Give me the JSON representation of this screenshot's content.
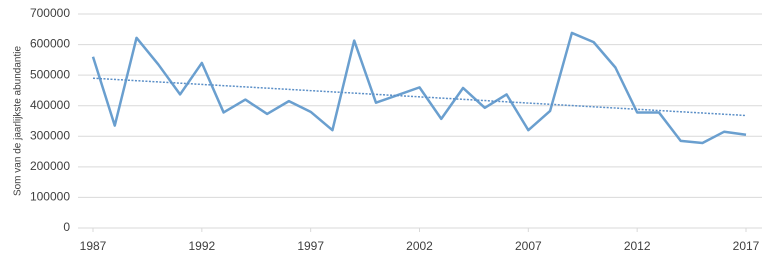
{
  "chart_data": {
    "type": "line",
    "y_label": "Som van de jaarlijkste abundantie",
    "x": [
      1987,
      1988,
      1989,
      1990,
      1991,
      1992,
      1993,
      1994,
      1995,
      1996,
      1997,
      1998,
      1999,
      2000,
      2001,
      2002,
      2003,
      2004,
      2005,
      2006,
      2007,
      2008,
      2009,
      2010,
      2011,
      2012,
      2013,
      2014,
      2015,
      2016,
      2017
    ],
    "series": [
      {
        "color": "#6a9fcf",
        "values": [
          560000,
          335000,
          622000,
          535000,
          437000,
          540000,
          378000,
          420000,
          373000,
          415000,
          380000,
          320000,
          613000,
          410000,
          435000,
          460000,
          357000,
          458000,
          393000,
          437000,
          320000,
          383000,
          638000,
          608000,
          525000,
          378000,
          378000,
          285000,
          278000,
          315000,
          305000
        ]
      }
    ],
    "trendline": {
      "color": "#5b8fc7",
      "x": [
        1987,
        2017
      ],
      "values": [
        490000,
        368000
      ]
    },
    "xlim": [
      1987,
      2017
    ],
    "xticks": [
      1987,
      1992,
      1997,
      2002,
      2007,
      2012,
      2017
    ],
    "ylim": [
      0,
      700000
    ],
    "yticks": [
      0,
      100000,
      200000,
      300000,
      400000,
      500000,
      600000,
      700000
    ],
    "grid": true
  }
}
